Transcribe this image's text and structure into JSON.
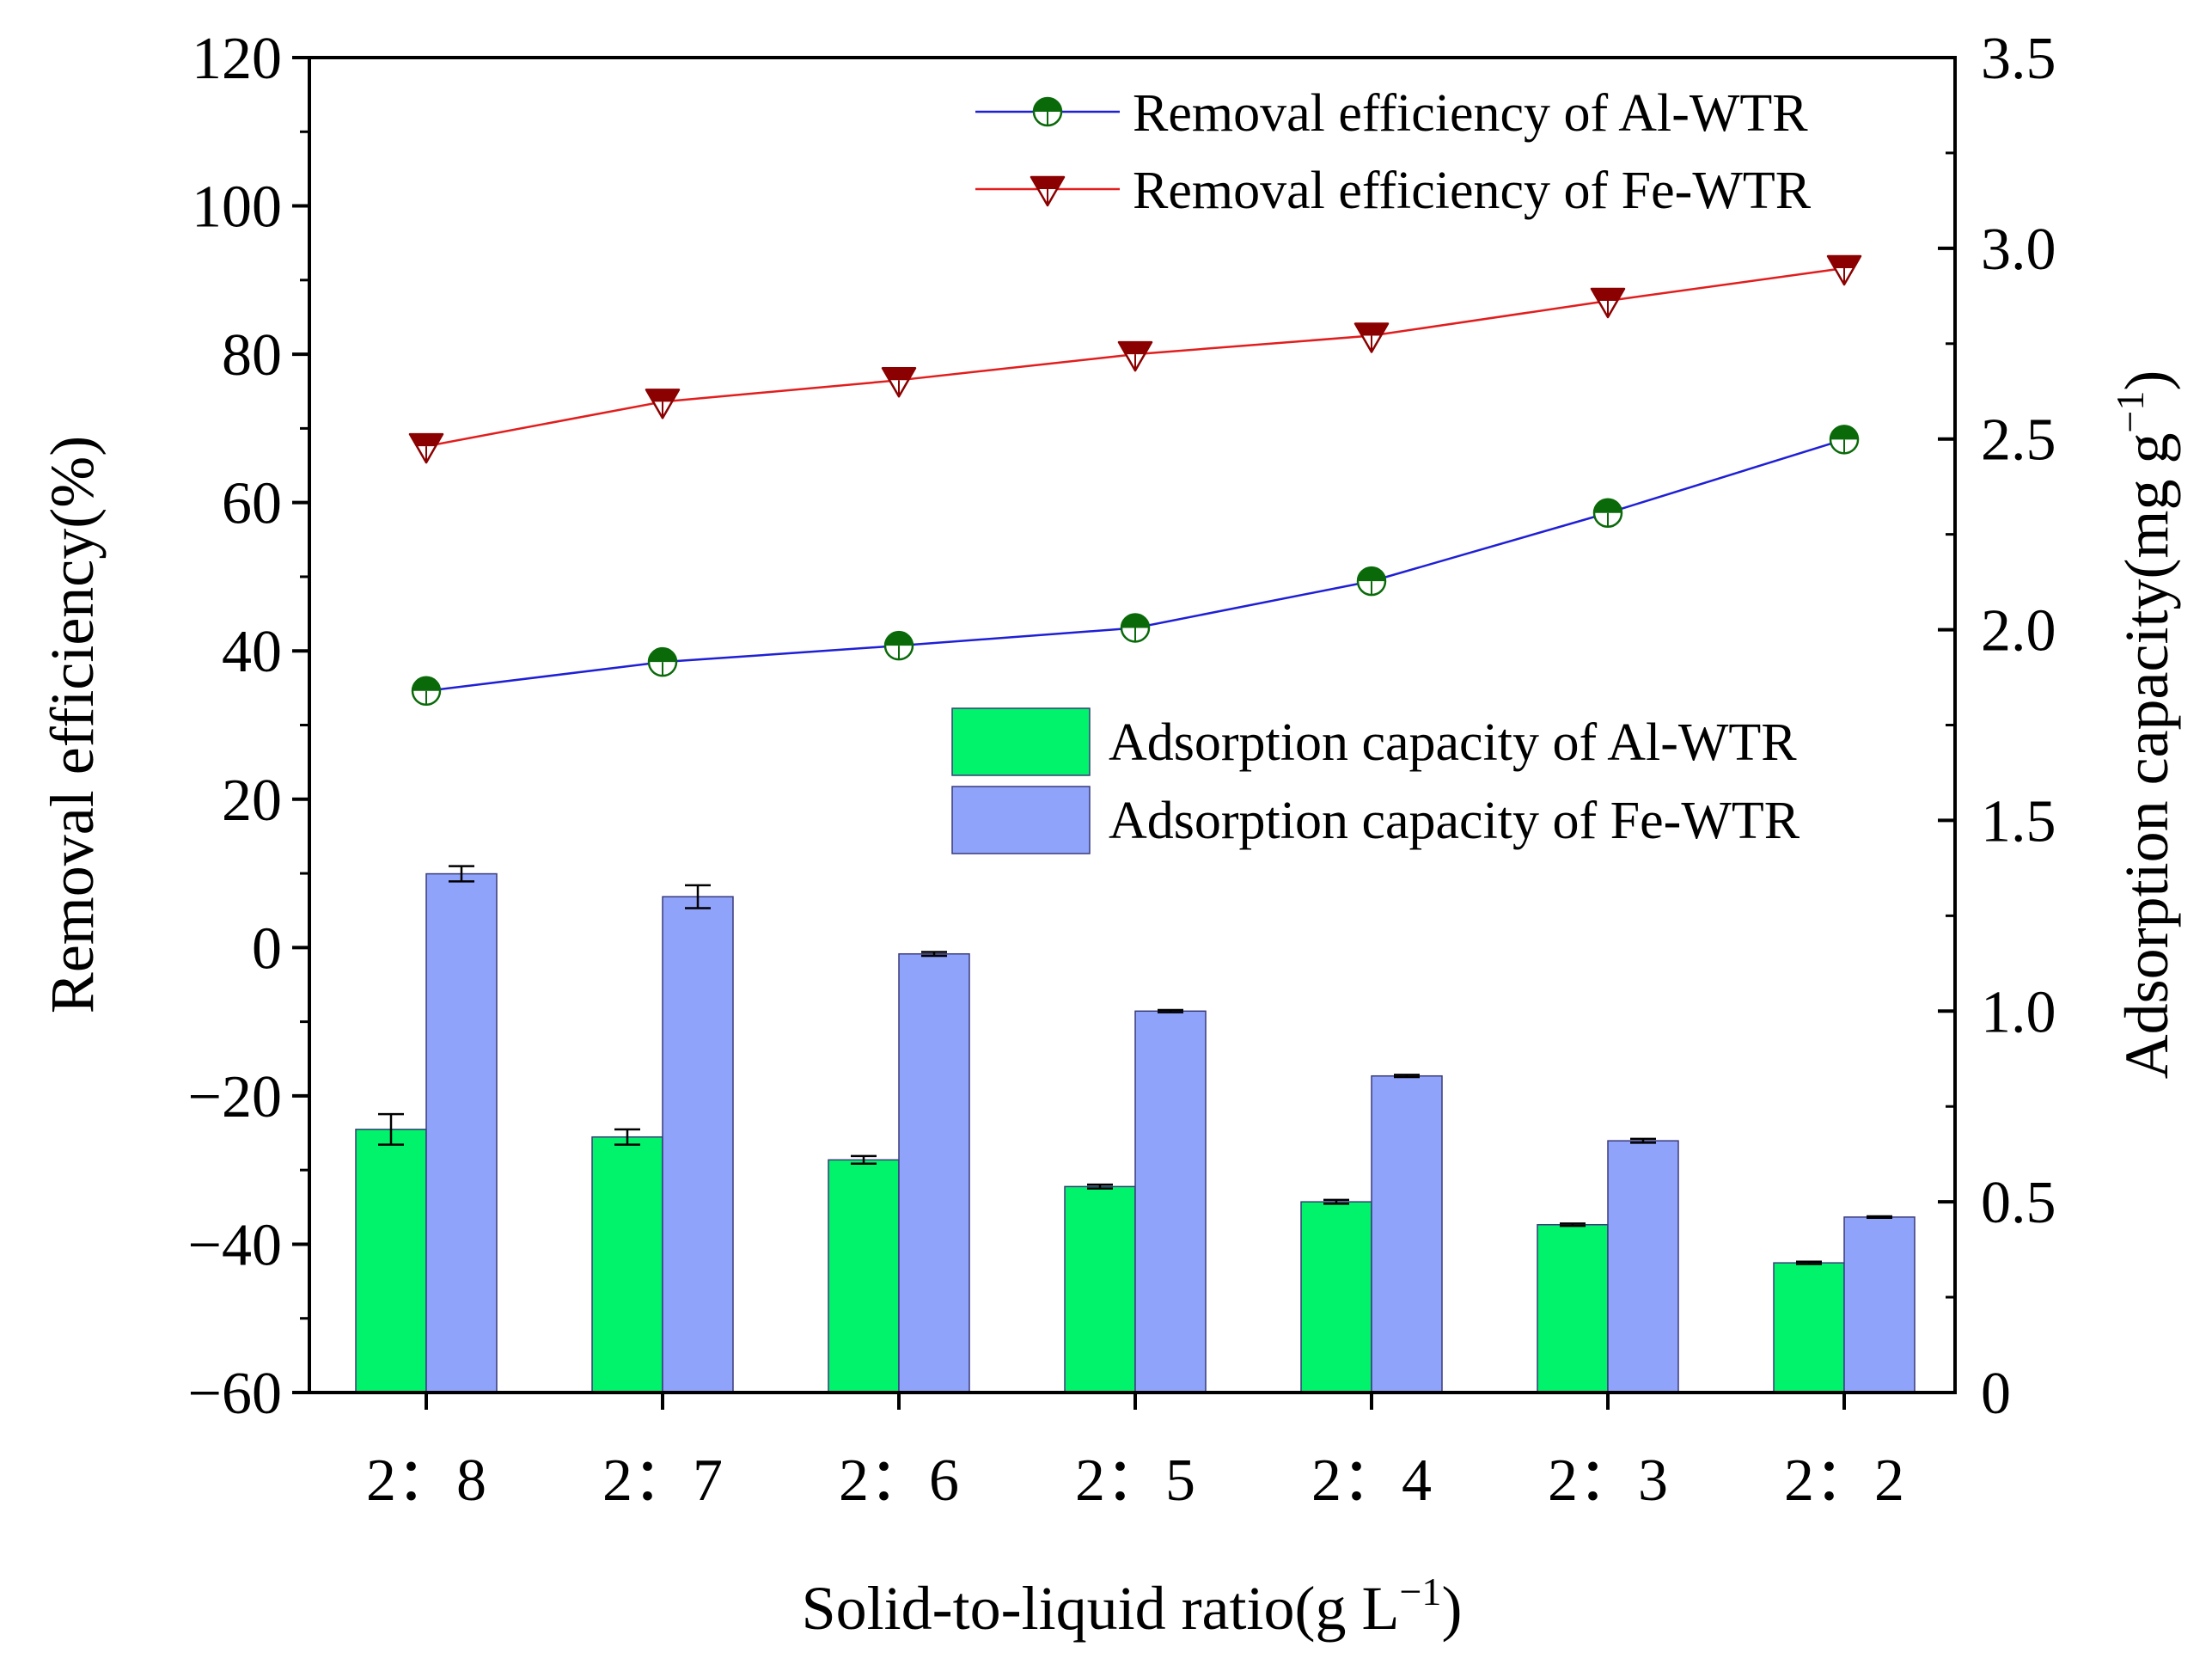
{
  "chart_data": {
    "type": "bar+line",
    "xlabel": "Solid-to-liquid ratio(g L",
    "xlabel_sup": "−1",
    "xlabel_close": ")",
    "ylabel_left": "Removal efficiency(%)",
    "ylabel_right": "Adsorption capacity(mg g",
    "ylabel_right_sup": "−1",
    "ylabel_right_close": ")",
    "categories": [
      "2：8",
      "2：7",
      "2：6",
      "2：5",
      "2：4",
      "2：3",
      "2：2"
    ],
    "y_left": {
      "range": [
        -60,
        120
      ],
      "ticks": [
        120,
        100,
        80,
        60,
        40,
        20,
        0,
        -20,
        -40,
        -60
      ],
      "tick_labels": [
        "120",
        "100",
        "80",
        "60",
        "40",
        "20",
        "0",
        "−20",
        "−40",
        "−60"
      ]
    },
    "y_right": {
      "range": [
        0,
        3.5
      ],
      "ticks": [
        3.5,
        3.0,
        2.5,
        2.0,
        1.5,
        1.0,
        0.5,
        0
      ],
      "tick_labels": [
        "3.5",
        "3.0",
        "2.5",
        "2.0",
        "1.5",
        "1.0",
        "0.5",
        "0"
      ]
    },
    "line_series": [
      {
        "name": "Removal efficiency of Al-WTR",
        "axis": "left",
        "color": "#1f1fd6",
        "marker": "half-circle",
        "marker_color": "#0a6a0a",
        "values": [
          34.6,
          38.5,
          40.7,
          43.1,
          49.4,
          58.6,
          68.5
        ]
      },
      {
        "name": "Removal efficiency of Fe-WTR",
        "axis": "left",
        "color": "#e21d1d",
        "marker": "half-triangle-down",
        "marker_color": "#8b0000",
        "values": [
          67.6,
          73.6,
          76.5,
          80.0,
          82.5,
          87.2,
          91.6
        ]
      }
    ],
    "bar_series": [
      {
        "name": "Adsorption capacity of Al-WTR",
        "axis": "right",
        "color": "#00f36a",
        "values": [
          0.69,
          0.67,
          0.61,
          0.54,
          0.5,
          0.44,
          0.34
        ],
        "errors": [
          0.04,
          0.02,
          0.01,
          0.005,
          0.005,
          0.003,
          0.003
        ]
      },
      {
        "name": "Adsorption capacity of Fe-WTR",
        "axis": "right",
        "color": "#8fa3fb",
        "values": [
          1.36,
          1.3,
          1.15,
          1.0,
          0.83,
          0.66,
          0.46
        ],
        "errors": [
          0.02,
          0.03,
          0.005,
          0.003,
          0.003,
          0.005,
          0.002
        ]
      }
    ]
  }
}
